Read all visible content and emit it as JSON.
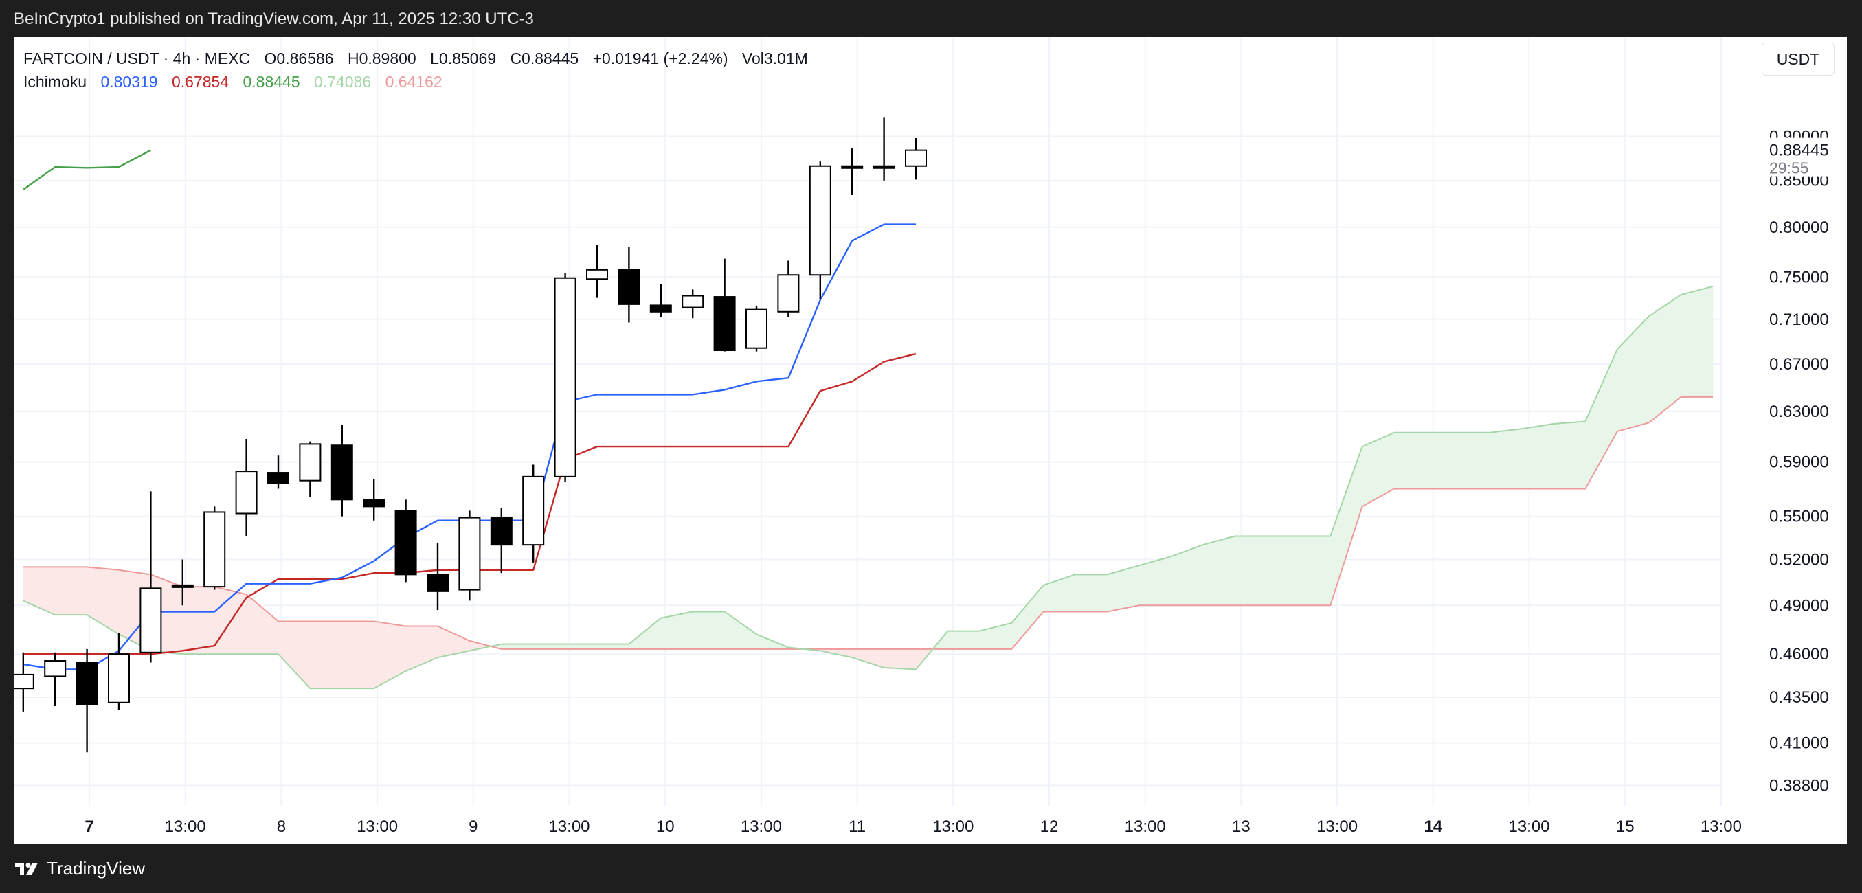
{
  "header": {
    "published": "BeInCrypto1 published on TradingView.com, Apr 11, 2025 12:30 UTC-3"
  },
  "footer": {
    "brand": "TradingView"
  },
  "legend": {
    "symbol": "FARTCOIN / USDT · 4h · MEXC",
    "open": "O0.86586",
    "high": "H0.89800",
    "low": "L0.85069",
    "close": "C0.88445",
    "change": "+0.01941 (+2.24%)",
    "volume": "Vol3.01M",
    "indicator": "Ichimoku",
    "ichimoku_values": [
      {
        "value": "0.80319",
        "color": "#2962ff"
      },
      {
        "value": "0.67854",
        "color": "#c62828"
      },
      {
        "value": "0.88445",
        "color": "#43a047"
      },
      {
        "value": "0.74086",
        "color": "#a5d6a7"
      },
      {
        "value": "0.64162",
        "color": "#ef9a9a"
      }
    ]
  },
  "currency": "USDT",
  "chart_data": {
    "type": "candlestick",
    "price_scale": {
      "ticks": [
        "0.90000",
        "0.85000",
        "0.80000",
        "0.75000",
        "0.71000",
        "0.67000",
        "0.63000",
        "0.59000",
        "0.55000",
        "0.52000",
        "0.49000",
        "0.46000",
        "0.43500",
        "0.41000",
        "0.38800"
      ],
      "last_price": "0.88445",
      "countdown": "29:55"
    },
    "time_scale": {
      "labels": [
        "7",
        "13:00",
        "8",
        "13:00",
        "9",
        "13:00",
        "10",
        "13:00",
        "11",
        "13:00",
        "12",
        "13:00",
        "13",
        "13:00",
        "14",
        "13:00",
        "15",
        "13:00"
      ],
      "bold": [
        "7",
        "14"
      ]
    },
    "colors": {
      "tenkan": "#2962ff",
      "kijun": "#c62828",
      "chikou": "#43a047",
      "span_a": "#a5d6a7",
      "span_b": "#ef9a9a"
    },
    "candles": [
      {
        "o": 0.44,
        "h": 0.461,
        "l": 0.427,
        "c": 0.448
      },
      {
        "o": 0.447,
        "h": 0.461,
        "l": 0.43,
        "c": 0.456
      },
      {
        "o": 0.455,
        "h": 0.463,
        "l": 0.405,
        "c": 0.431
      },
      {
        "o": 0.432,
        "h": 0.473,
        "l": 0.428,
        "c": 0.46
      },
      {
        "o": 0.461,
        "h": 0.568,
        "l": 0.455,
        "c": 0.501
      },
      {
        "o": 0.503,
        "h": 0.52,
        "l": 0.49,
        "c": 0.502
      },
      {
        "o": 0.502,
        "h": 0.557,
        "l": 0.5,
        "c": 0.553
      },
      {
        "o": 0.552,
        "h": 0.608,
        "l": 0.536,
        "c": 0.583
      },
      {
        "o": 0.582,
        "h": 0.595,
        "l": 0.57,
        "c": 0.574
      },
      {
        "o": 0.576,
        "h": 0.606,
        "l": 0.564,
        "c": 0.604
      },
      {
        "o": 0.603,
        "h": 0.619,
        "l": 0.55,
        "c": 0.562
      },
      {
        "o": 0.562,
        "h": 0.577,
        "l": 0.547,
        "c": 0.557
      },
      {
        "o": 0.554,
        "h": 0.562,
        "l": 0.505,
        "c": 0.51
      },
      {
        "o": 0.51,
        "h": 0.531,
        "l": 0.487,
        "c": 0.499
      },
      {
        "o": 0.5,
        "h": 0.554,
        "l": 0.493,
        "c": 0.549
      },
      {
        "o": 0.549,
        "h": 0.556,
        "l": 0.511,
        "c": 0.53
      },
      {
        "o": 0.53,
        "h": 0.588,
        "l": 0.518,
        "c": 0.579
      },
      {
        "o": 0.579,
        "h": 0.754,
        "l": 0.575,
        "c": 0.749
      },
      {
        "o": 0.748,
        "h": 0.782,
        "l": 0.73,
        "c": 0.757
      },
      {
        "o": 0.757,
        "h": 0.78,
        "l": 0.707,
        "c": 0.724
      },
      {
        "o": 0.723,
        "h": 0.743,
        "l": 0.712,
        "c": 0.717
      },
      {
        "o": 0.721,
        "h": 0.738,
        "l": 0.711,
        "c": 0.732
      },
      {
        "o": 0.731,
        "h": 0.768,
        "l": 0.681,
        "c": 0.682
      },
      {
        "o": 0.684,
        "h": 0.722,
        "l": 0.681,
        "c": 0.719
      },
      {
        "o": 0.717,
        "h": 0.766,
        "l": 0.712,
        "c": 0.752
      },
      {
        "o": 0.752,
        "h": 0.871,
        "l": 0.729,
        "c": 0.866
      },
      {
        "o": 0.866,
        "h": 0.886,
        "l": 0.834,
        "c": 0.866
      },
      {
        "o": 0.866,
        "h": 0.922,
        "l": 0.85,
        "c": 0.866
      },
      {
        "o": 0.866,
        "h": 0.898,
        "l": 0.851,
        "c": 0.884
      }
    ],
    "tenkan": [
      0.454,
      0.451,
      0.451,
      0.462,
      0.486,
      0.486,
      0.486,
      0.504,
      0.504,
      0.504,
      0.508,
      0.519,
      0.535,
      0.547,
      0.547,
      0.547,
      0.547,
      0.638,
      0.644,
      0.644,
      0.644,
      0.644,
      0.648,
      0.655,
      0.658,
      0.728,
      0.786,
      0.803,
      0.803
    ],
    "kijun": [
      0.46,
      0.46,
      0.46,
      0.46,
      0.46,
      0.462,
      0.465,
      0.495,
      0.507,
      0.507,
      0.507,
      0.511,
      0.511,
      0.513,
      0.513,
      0.513,
      0.513,
      0.592,
      0.602,
      0.602,
      0.602,
      0.602,
      0.602,
      0.602,
      0.602,
      0.647,
      0.655,
      0.672,
      0.679
    ],
    "chikou": [
      0.84,
      0.865,
      0.864,
      0.865,
      0.884
    ],
    "span_a": [
      0.493,
      0.484,
      0.484,
      0.472,
      0.462,
      0.46,
      0.46,
      0.46,
      0.46,
      0.44,
      0.44,
      0.44,
      0.45,
      0.458,
      0.462,
      0.466,
      0.466,
      0.466,
      0.466,
      0.466,
      0.482,
      0.486,
      0.486,
      0.472,
      0.464,
      0.462,
      0.458,
      0.452,
      0.451,
      0.474,
      0.474,
      0.479,
      0.503,
      0.51,
      0.51,
      0.516,
      0.522,
      0.53,
      0.536,
      0.536,
      0.536,
      0.536,
      0.602,
      0.613,
      0.613,
      0.613,
      0.613,
      0.616,
      0.62,
      0.622,
      0.683,
      0.713,
      0.733,
      0.741
    ],
    "span_b": [
      0.515,
      0.515,
      0.515,
      0.513,
      0.51,
      0.502,
      0.502,
      0.497,
      0.48,
      0.48,
      0.48,
      0.48,
      0.477,
      0.477,
      0.468,
      0.463,
      0.463,
      0.463,
      0.463,
      0.463,
      0.463,
      0.463,
      0.463,
      0.463,
      0.463,
      0.463,
      0.463,
      0.463,
      0.463,
      0.463,
      0.463,
      0.463,
      0.486,
      0.486,
      0.486,
      0.49,
      0.49,
      0.49,
      0.49,
      0.49,
      0.49,
      0.49,
      0.557,
      0.57,
      0.57,
      0.57,
      0.57,
      0.57,
      0.57,
      0.57,
      0.614,
      0.621,
      0.642,
      0.642
    ]
  }
}
